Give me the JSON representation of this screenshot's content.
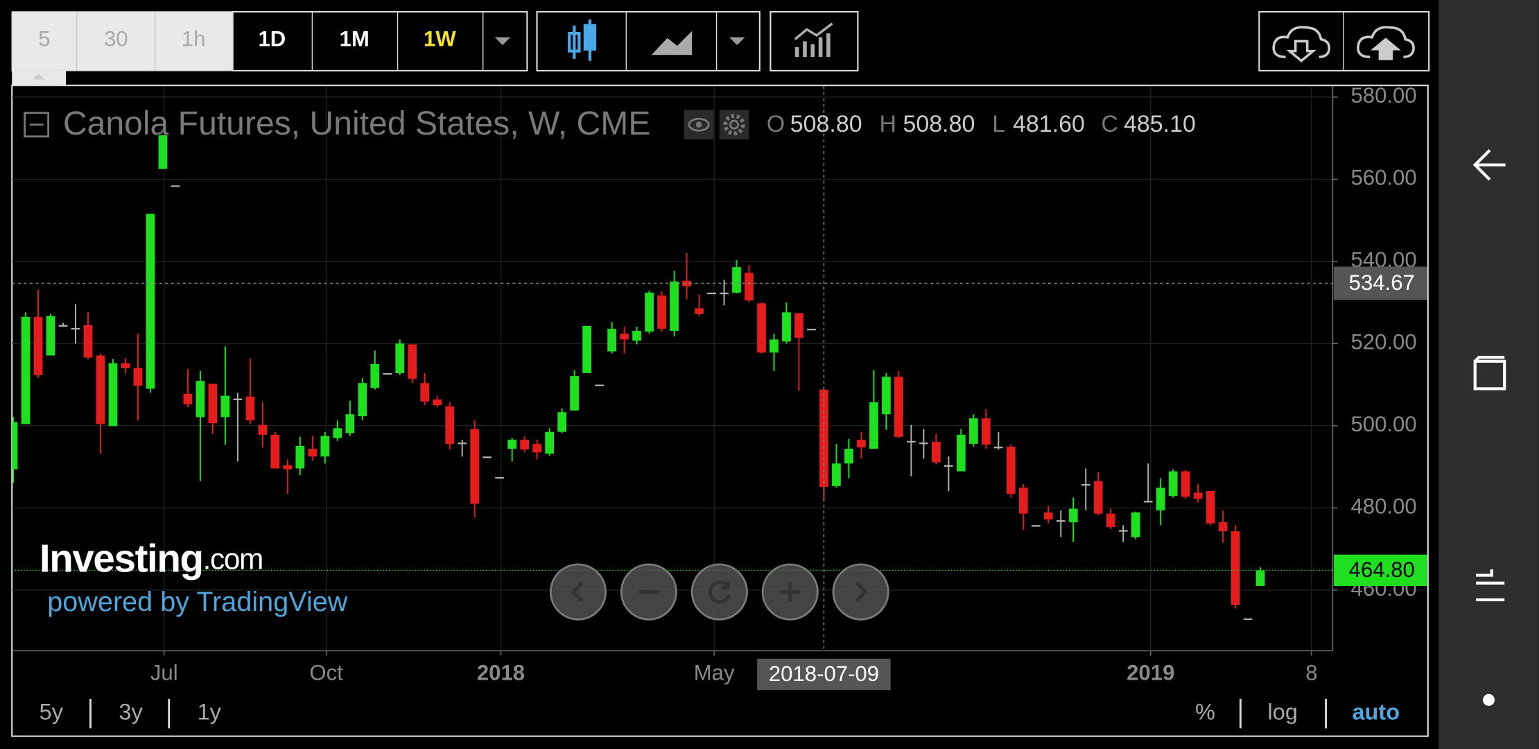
{
  "toolbar": {
    "intervals": [
      "5",
      "30",
      "1h",
      "1D",
      "1M",
      "1W"
    ]
  },
  "range_buttons": [
    "5y",
    "3y",
    "1y"
  ],
  "scale_buttons": [
    "%",
    "log",
    "auto"
  ],
  "watermark": {
    "brand": "Investing",
    "suffix": ".com",
    "tagline": "powered by TradingView"
  },
  "chart_data": {
    "type": "candlestick",
    "title": "Canola Futures, United States, W, CME",
    "readout": [
      {
        "key": "O",
        "label": "508.80"
      },
      {
        "key": "H",
        "label": "508.80"
      },
      {
        "key": "L",
        "label": "481.60"
      },
      {
        "key": "C",
        "label": "485.10"
      }
    ],
    "colors": {
      "up": "#1ee01e",
      "down": "#e41c1c",
      "flat": "#b0b0b0"
    },
    "xlim": [
      -0.1,
      105.8
    ],
    "ylim": [
      445.2,
      582.6
    ],
    "yticks": [
      {
        "value": 460,
        "label": "460.00"
      },
      {
        "value": 480,
        "label": "480.00"
      },
      {
        "value": 500,
        "label": "500.00"
      },
      {
        "value": 520,
        "label": "520.00"
      },
      {
        "value": 540,
        "label": "540.00"
      },
      {
        "value": 560,
        "label": "560.00"
      },
      {
        "value": 580,
        "label": "580.00"
      }
    ],
    "xticks": [
      {
        "value": 12.1,
        "label": "Jul"
      },
      {
        "value": 25.1,
        "label": "Oct"
      },
      {
        "value": 39.1,
        "label": "2018",
        "bold": true
      },
      {
        "value": 56.2,
        "label": "May"
      },
      {
        "value": 91.2,
        "label": "2019",
        "bold": true
      },
      {
        "value": 104.1,
        "label": "8"
      }
    ],
    "grid": true,
    "crosshair": {
      "x": {
        "value": 65,
        "label": "2018-07-09"
      },
      "y": {
        "value": 534.67,
        "label": "534.67"
      }
    },
    "last_price": {
      "value": 464.8,
      "label": "464.80"
    },
    "candles": [
      [
        489.4,
        502.1,
        486.1,
        500.9
      ],
      [
        500.4,
        527.6,
        500.4,
        526.5
      ],
      [
        526.5,
        533.1,
        511.6,
        512.3
      ],
      [
        517.1,
        527.2,
        517.1,
        526.7
      ],
      [
        524.5,
        525.0,
        524.1,
        524.5
      ],
      [
        523.8,
        529.6,
        520.0,
        523.8
      ],
      [
        524.5,
        527.6,
        516.2,
        516.6
      ],
      [
        517.1,
        517.6,
        493.2,
        500.4
      ],
      [
        499.9,
        516.2,
        499.9,
        515.2
      ],
      [
        515.2,
        516.4,
        512.8,
        514.0
      ],
      [
        514.0,
        522.4,
        501.3,
        509.7
      ],
      [
        509.0,
        551.6,
        508.0,
        551.6
      ],
      [
        562.5,
        570.7,
        562.5,
        570.7
      ],
      [
        558.5,
        558.5,
        558.5,
        558.5
      ],
      [
        507.8,
        513.8,
        504.5,
        505.2
      ],
      [
        502.1,
        513.3,
        486.5,
        510.9
      ],
      [
        510.2,
        510.2,
        498.0,
        500.6
      ],
      [
        502.1,
        519.3,
        495.4,
        507.3
      ],
      [
        506.6,
        508.0,
        491.3,
        506.6
      ],
      [
        507.1,
        516.4,
        500.4,
        501.3
      ],
      [
        500.2,
        505.7,
        494.7,
        497.8
      ],
      [
        497.8,
        498.5,
        489.6,
        489.6
      ],
      [
        490.4,
        491.8,
        483.4,
        489.4
      ],
      [
        489.6,
        497.3,
        488.0,
        495.1
      ],
      [
        494.4,
        497.5,
        491.5,
        492.5
      ],
      [
        492.5,
        498.5,
        490.8,
        497.5
      ],
      [
        497.0,
        501.3,
        496.3,
        499.4
      ],
      [
        498.2,
        506.1,
        497.5,
        502.8
      ],
      [
        502.3,
        511.6,
        501.3,
        510.4
      ],
      [
        509.2,
        518.3,
        508.8,
        515.0
      ],
      [
        512.8,
        512.8,
        512.8,
        512.8
      ],
      [
        512.8,
        521.0,
        512.3,
        520.0
      ],
      [
        519.8,
        519.8,
        510.4,
        511.4
      ],
      [
        510.4,
        512.8,
        505.0,
        505.9
      ],
      [
        506.4,
        507.3,
        504.5,
        505.0
      ],
      [
        504.7,
        505.7,
        494.2,
        495.6
      ],
      [
        495.9,
        496.6,
        492.5,
        495.9
      ],
      [
        499.2,
        501.3,
        477.7,
        481.0
      ],
      [
        492.5,
        492.5,
        492.5,
        492.5
      ],
      [
        487.5,
        487.5,
        487.5,
        487.5
      ],
      [
        494.4,
        497.0,
        491.3,
        496.6
      ],
      [
        496.6,
        497.5,
        493.5,
        494.2
      ],
      [
        495.6,
        496.6,
        491.8,
        493.5
      ],
      [
        493.2,
        499.4,
        492.7,
        498.5
      ],
      [
        498.5,
        504.2,
        498.2,
        503.3
      ],
      [
        503.7,
        513.5,
        503.7,
        512.1
      ],
      [
        512.8,
        524.3,
        512.8,
        524.3
      ],
      [
        510.0,
        510.0,
        510.0,
        510.0
      ],
      [
        518.1,
        525.3,
        517.6,
        523.6
      ],
      [
        522.4,
        524.1,
        517.6,
        521.0
      ],
      [
        520.7,
        524.1,
        519.8,
        523.1
      ],
      [
        522.9,
        532.9,
        522.4,
        532.4
      ],
      [
        531.7,
        532.7,
        522.9,
        523.6
      ],
      [
        523.1,
        537.7,
        521.7,
        535.1
      ],
      [
        535.3,
        542.0,
        530.8,
        533.9
      ],
      [
        528.6,
        532.0,
        526.7,
        527.2
      ],
      [
        532.4,
        532.4,
        532.4,
        532.4
      ],
      [
        532.4,
        535.5,
        529.3,
        532.4
      ],
      [
        532.4,
        540.3,
        532.2,
        538.6
      ],
      [
        537.2,
        539.1,
        530.0,
        530.5
      ],
      [
        529.8,
        530.0,
        517.6,
        517.8
      ],
      [
        517.8,
        522.4,
        513.3,
        521.0
      ],
      [
        520.5,
        530.0,
        520.0,
        527.6
      ],
      [
        527.4,
        527.4,
        508.5,
        521.4
      ],
      [
        523.6,
        523.6,
        523.6,
        523.6
      ],
      [
        508.8,
        508.8,
        481.6,
        485.1
      ],
      [
        485.3,
        495.6,
        484.9,
        490.8
      ],
      [
        490.8,
        496.8,
        487.2,
        494.4
      ],
      [
        496.6,
        498.5,
        492.0,
        494.7
      ],
      [
        494.4,
        513.5,
        494.4,
        505.7
      ],
      [
        502.8,
        512.8,
        499.0,
        511.9
      ],
      [
        511.9,
        513.3,
        497.0,
        497.3
      ],
      [
        496.3,
        500.2,
        487.7,
        496.3
      ],
      [
        495.9,
        499.2,
        492.0,
        495.9
      ],
      [
        496.1,
        498.0,
        490.6,
        491.1
      ],
      [
        490.4,
        492.5,
        484.1,
        490.4
      ],
      [
        488.9,
        499.2,
        488.9,
        497.8
      ],
      [
        495.6,
        502.8,
        494.9,
        501.8
      ],
      [
        501.8,
        504.0,
        494.4,
        495.4
      ],
      [
        494.9,
        498.5,
        494.2,
        494.9
      ],
      [
        494.9,
        495.4,
        482.5,
        483.4
      ],
      [
        484.9,
        485.8,
        474.6,
        478.6
      ],
      [
        475.8,
        475.8,
        475.8,
        475.8
      ],
      [
        478.9,
        480.5,
        476.2,
        477.2
      ],
      [
        477.0,
        479.4,
        472.9,
        477.0
      ],
      [
        476.5,
        482.5,
        471.7,
        479.8
      ],
      [
        485.8,
        489.6,
        479.4,
        485.8
      ],
      [
        486.5,
        488.7,
        478.2,
        478.6
      ],
      [
        478.6,
        479.8,
        474.8,
        475.3
      ],
      [
        474.6,
        475.8,
        471.7,
        474.6
      ],
      [
        472.9,
        479.1,
        472.4,
        478.9
      ],
      [
        481.7,
        490.8,
        481.3,
        481.7
      ],
      [
        479.4,
        487.2,
        475.8,
        484.9
      ],
      [
        482.9,
        489.4,
        482.5,
        488.9
      ],
      [
        488.9,
        489.2,
        482.2,
        482.7
      ],
      [
        483.7,
        485.8,
        481.3,
        482.2
      ],
      [
        484.1,
        484.1,
        475.8,
        476.2
      ],
      [
        476.5,
        479.4,
        471.5,
        474.3
      ],
      [
        474.3,
        475.8,
        455.5,
        456.4
      ],
      [
        453.1,
        453.1,
        453.1,
        453.1
      ],
      [
        461.0,
        465.5,
        461.0,
        464.8
      ]
    ]
  }
}
